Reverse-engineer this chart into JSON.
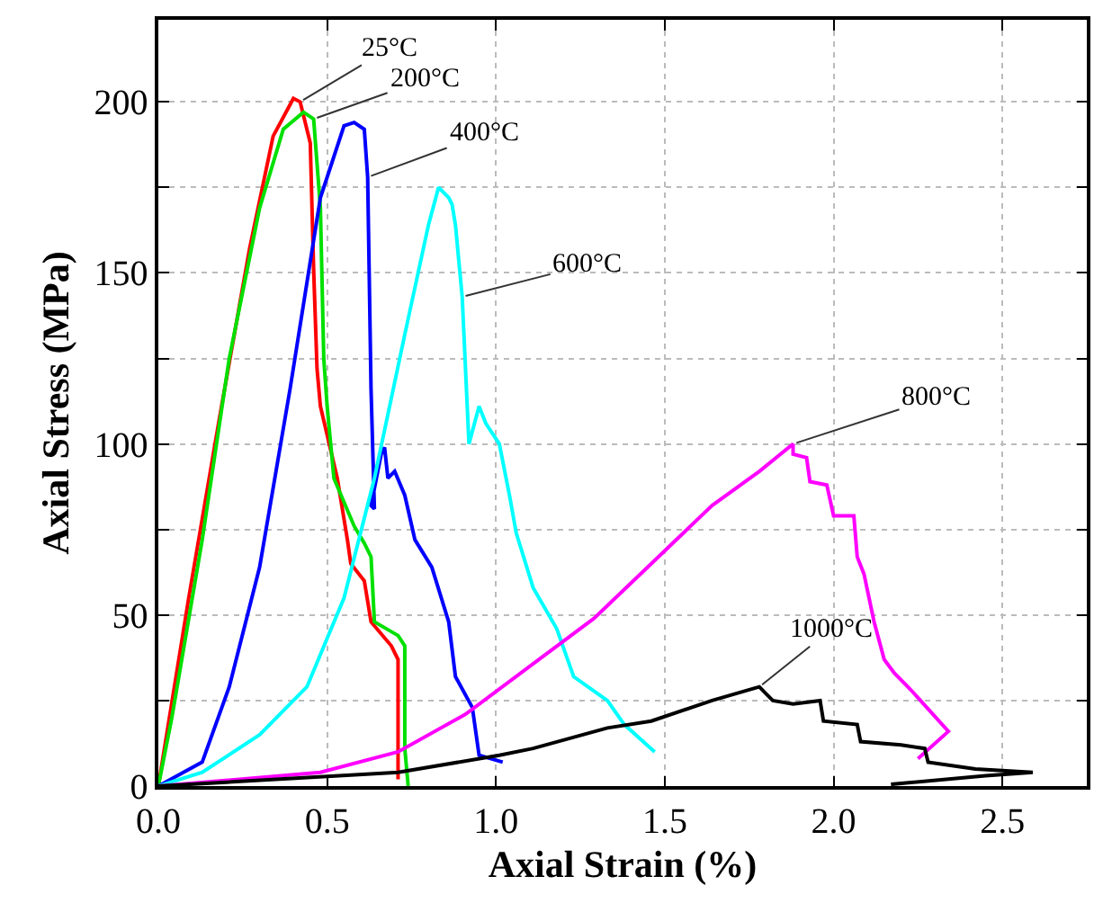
{
  "chart_data": {
    "type": "line",
    "xlabel": "Axial Strain (%)",
    "ylabel": "Axial Stress (MPa)",
    "xlim": [
      0,
      2.75
    ],
    "ylim": [
      0,
      224
    ],
    "xticks": [
      {
        "value": 0,
        "label": "0.0"
      },
      {
        "value": 0.5,
        "label": "0.5"
      },
      {
        "value": 1,
        "label": "1.0"
      },
      {
        "value": 1.5,
        "label": "1.5"
      },
      {
        "value": 2,
        "label": "2.0"
      },
      {
        "value": 2.5,
        "label": "2.5"
      }
    ],
    "yticks": [
      0,
      {
        "value": 25,
        "label": null
      },
      50,
      {
        "value": 75,
        "label": null
      },
      100,
      {
        "value": 125,
        "label": null
      },
      150,
      {
        "value": 175,
        "label": null
      },
      200
    ],
    "grid": true,
    "marker": "none",
    "line_style": "solid",
    "series": [
      {
        "color": "#ff0000",
        "x": [
          0,
          0.09,
          0.18,
          0.27,
          0.34,
          0.4,
          0.42,
          0.45,
          0.46,
          0.47,
          0.48,
          0.53,
          0.56,
          0.57,
          0.61,
          0.63,
          0.69,
          0.71,
          0.71,
          0.71
        ],
        "values": [
          0,
          55,
          107,
          157,
          190,
          201,
          200,
          188,
          151,
          122,
          111,
          90,
          72,
          65,
          60,
          48,
          41,
          37,
          13,
          2
        ]
      },
      {
        "color": "#00e000",
        "x": [
          0,
          0.04,
          0.13,
          0.21,
          0.3,
          0.37,
          0.43,
          0.46,
          0.48,
          0.49,
          0.5,
          0.52,
          0.58,
          0.61,
          0.63,
          0.64,
          0.71,
          0.73,
          0.73,
          0.74
        ],
        "values": [
          0,
          20,
          72,
          125,
          169,
          192,
          197,
          195,
          169,
          125,
          111,
          90,
          76,
          71,
          67,
          48,
          44,
          41,
          11,
          0
        ]
      },
      {
        "color": "#0000ff",
        "x": [
          0,
          0.13,
          0.21,
          0.3,
          0.39,
          0.48,
          0.55,
          0.58,
          0.61,
          0.62,
          0.63,
          0.64,
          0.63,
          0.66,
          0.67,
          0.68,
          0.7,
          0.73,
          0.76,
          0.81,
          0.86,
          0.88,
          0.93,
          0.95,
          1.02
        ],
        "values": [
          0,
          7,
          29,
          64,
          116,
          172,
          193,
          194,
          192,
          178,
          116,
          81,
          82,
          97,
          99,
          90,
          92,
          85,
          72,
          64,
          48,
          32,
          23,
          9,
          7
        ]
      },
      {
        "color": "#00ffff",
        "x": [
          0,
          0.13,
          0.3,
          0.44,
          0.55,
          0.64,
          0.73,
          0.8,
          0.83,
          0.86,
          0.87,
          0.88,
          0.9,
          0.92,
          0.95,
          0.97,
          1.01,
          1.04,
          1.06,
          1.11,
          1.18,
          1.23,
          1.33,
          1.38,
          1.47
        ],
        "values": [
          0,
          4,
          15,
          29,
          55,
          90,
          132,
          164,
          175,
          172,
          170,
          164,
          143,
          100,
          111,
          106,
          100,
          85,
          74,
          58,
          46,
          32,
          25,
          18,
          10
        ]
      },
      {
        "color": "#ff00ff",
        "x": [
          0,
          0.48,
          0.71,
          0.91,
          1.1,
          1.29,
          1.46,
          1.64,
          1.78,
          1.88,
          1.88,
          1.92,
          1.93,
          1.98,
          2.0,
          2.06,
          2.07,
          2.09,
          2.12,
          2.15,
          2.18,
          2.23,
          2.34,
          2.25
        ],
        "values": [
          0,
          4,
          10,
          21,
          35,
          49,
          65,
          82,
          92,
          100,
          97,
          96,
          89,
          88,
          79,
          79,
          67,
          62,
          48,
          37,
          33,
          28,
          16,
          8
        ]
      },
      {
        "color": "#000000",
        "x": [
          0,
          0.71,
          1.01,
          1.11,
          1.33,
          1.46,
          1.64,
          1.78,
          1.8,
          1.82,
          1.88,
          1.96,
          1.97,
          2.07,
          2.08,
          2.2,
          2.27,
          2.28,
          2.42,
          2.59,
          2.45,
          2.17
        ],
        "values": [
          0,
          4,
          9,
          11,
          17,
          19,
          25,
          29,
          27,
          25,
          24,
          25,
          19,
          18,
          13,
          12,
          11,
          7,
          5,
          4,
          3,
          0.5
        ]
      }
    ],
    "annotations": [
      {
        "text": "25°C",
        "x": 0.42,
        "y": 200
      },
      {
        "text": "200°C",
        "x": 0.46,
        "y": 195
      },
      {
        "text": "400°C",
        "x": 0.62,
        "y": 178
      },
      {
        "text": "600°C",
        "x": 0.9,
        "y": 143
      },
      {
        "text": "800°C",
        "x": 1.88,
        "y": 100
      },
      {
        "text": "1000°C",
        "x": 1.78,
        "y": 29
      }
    ]
  }
}
